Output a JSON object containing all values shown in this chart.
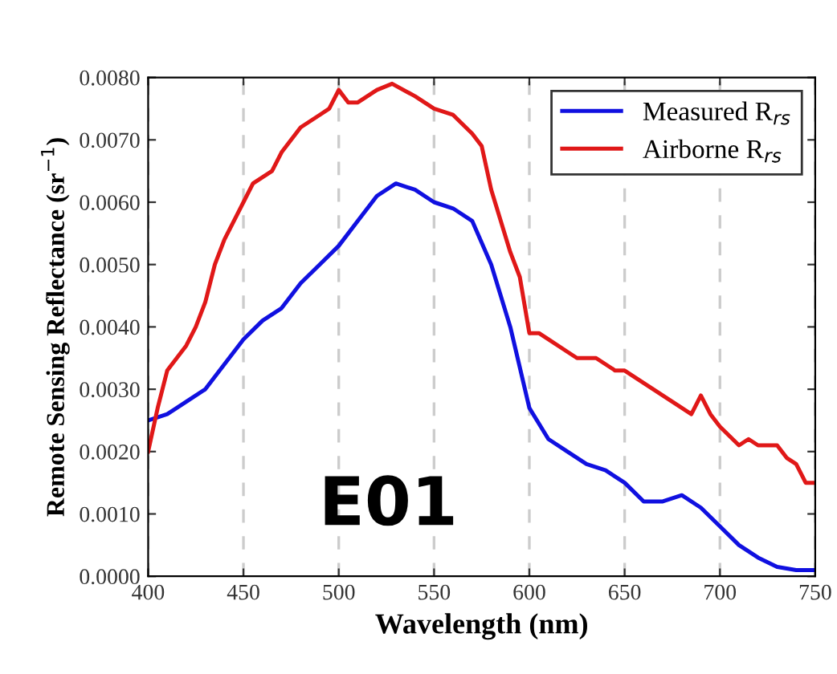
{
  "chart_data": {
    "type": "line",
    "xlabel": "Wavelength (nm)",
    "ylabel": "Remote Sensing Reflectance (sr$^{−1}$)",
    "xlim": [
      400,
      750
    ],
    "xticks": [
      400,
      450,
      500,
      550,
      600,
      650,
      700,
      750
    ],
    "ylim": [
      0,
      0.008
    ],
    "yticks": [
      {
        "value": 0,
        "label": "0.0000"
      },
      {
        "value": 0.001,
        "label": "0.0010"
      },
      {
        "value": 0.002,
        "label": "0.0020"
      },
      {
        "value": 0.003,
        "label": "0.0030"
      },
      {
        "value": 0.004,
        "label": "0.0040"
      },
      {
        "value": 0.005,
        "label": "0.0050"
      },
      {
        "value": 0.006,
        "label": "0.0060"
      },
      {
        "value": 0.007,
        "label": "0.0070"
      },
      {
        "value": 0.008,
        "label": "0.0080"
      }
    ],
    "grid": "x",
    "legend": "top right",
    "line_style": "solid",
    "marker": "none",
    "annotations": [
      "E01"
    ],
    "series": [
      {
        "name": "Measured R$_{rs}$",
        "color": "#1010e0",
        "x": [
          400,
          410,
          420,
          430,
          440,
          450,
          460,
          470,
          480,
          490,
          500,
          510,
          520,
          530,
          540,
          550,
          560,
          570,
          580,
          590,
          600,
          610,
          620,
          630,
          640,
          650,
          660,
          670,
          680,
          690,
          700,
          710,
          720,
          730,
          740,
          750
        ],
        "values": [
          0.0025,
          0.0026,
          0.0028,
          0.003,
          0.0034,
          0.0038,
          0.0041,
          0.0043,
          0.0047,
          0.005,
          0.0053,
          0.0057,
          0.0061,
          0.0063,
          0.0062,
          0.006,
          0.0059,
          0.0057,
          0.005,
          0.004,
          0.0027,
          0.0022,
          0.002,
          0.0018,
          0.0017,
          0.0015,
          0.0012,
          0.0012,
          0.0013,
          0.0011,
          0.0008,
          0.0005,
          0.0003,
          0.00015,
          0.0001,
          0.0001
        ]
      },
      {
        "name": "Airborne R$_{rs}$",
        "color": "#e01818",
        "x": [
          400,
          405,
          410,
          420,
          425,
          430,
          435,
          440,
          450,
          455,
          460,
          465,
          470,
          480,
          485,
          490,
          495,
          500,
          505,
          510,
          520,
          528,
          540,
          550,
          560,
          570,
          575,
          580,
          590,
          595,
          600,
          605,
          610,
          620,
          625,
          630,
          635,
          640,
          645,
          650,
          660,
          665,
          670,
          675,
          680,
          685,
          690,
          695,
          700,
          710,
          715,
          720,
          730,
          735,
          740,
          745,
          750
        ],
        "values": [
          0.002,
          0.0027,
          0.0033,
          0.0037,
          0.004,
          0.0044,
          0.005,
          0.0054,
          0.006,
          0.0063,
          0.0064,
          0.0065,
          0.0068,
          0.0072,
          0.0073,
          0.0074,
          0.0075,
          0.0078,
          0.0076,
          0.0076,
          0.0078,
          0.0079,
          0.0077,
          0.0075,
          0.0074,
          0.0071,
          0.0069,
          0.0062,
          0.0052,
          0.0048,
          0.0039,
          0.0039,
          0.0038,
          0.0036,
          0.0035,
          0.0035,
          0.0035,
          0.0034,
          0.0033,
          0.0033,
          0.0031,
          0.003,
          0.0029,
          0.0028,
          0.0027,
          0.0026,
          0.0029,
          0.0026,
          0.0024,
          0.0021,
          0.0022,
          0.0021,
          0.0021,
          0.0019,
          0.0018,
          0.0015,
          0.0015
        ]
      }
    ]
  }
}
